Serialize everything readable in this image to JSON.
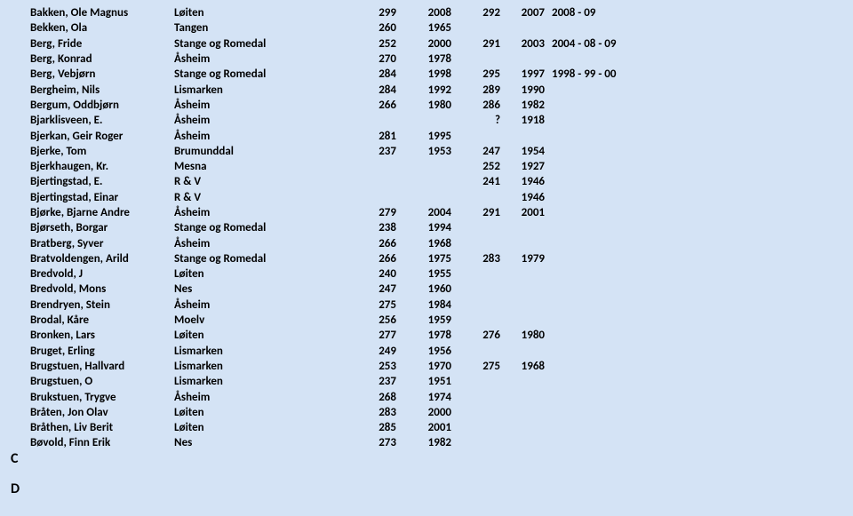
{
  "rows": [
    {
      "letter": "",
      "name": "Bakken, Ole Magnus",
      "place": "Løiten",
      "n1": "299",
      "y1": "2008",
      "n2": "292",
      "y2": "2007",
      "note": "2008 - 09"
    },
    {
      "letter": "",
      "name": "Bekken, Ola",
      "place": "Tangen",
      "n1": "260",
      "y1": "1965",
      "n2": "",
      "y2": "",
      "note": ""
    },
    {
      "letter": "",
      "name": "Berg, Fride",
      "place": "Stange og Romedal",
      "n1": "252",
      "y1": "2000",
      "n2": "291",
      "y2": "2003",
      "note": "2004 - 08 - 09"
    },
    {
      "letter": "",
      "name": "Berg, Konrad",
      "place": "Åsheim",
      "n1": "270",
      "y1": "1978",
      "n2": "",
      "y2": "",
      "note": ""
    },
    {
      "letter": "",
      "name": "Berg, Vebjørn",
      "place": "Stange og Romedal",
      "n1": "284",
      "y1": "1998",
      "n2": "295",
      "y2": "1997",
      "note": "1998 - 99 - 00"
    },
    {
      "letter": "",
      "name": "Bergheim, Nils",
      "place": "Lismarken",
      "n1": "284",
      "y1": "1992",
      "n2": "289",
      "y2": "1990",
      "note": ""
    },
    {
      "letter": "",
      "name": "Bergum, Oddbjørn",
      "place": "Åsheim",
      "n1": "266",
      "y1": "1980",
      "n2": "286",
      "y2": "1982",
      "note": ""
    },
    {
      "letter": "",
      "name": "Bjarklisveen, E.",
      "place": "Åsheim",
      "n1": "",
      "y1": "",
      "n2": "?",
      "y2": "1918",
      "note": ""
    },
    {
      "letter": "",
      "name": "Bjerkan, Geir Roger",
      "place": "Åsheim",
      "n1": "281",
      "y1": "1995",
      "n2": "",
      "y2": "",
      "note": ""
    },
    {
      "letter": "",
      "name": "Bjerke, Tom",
      "place": "Brumunddal",
      "n1": "237",
      "y1": "1953",
      "n2": "247",
      "y2": "1954",
      "note": ""
    },
    {
      "letter": "",
      "name": "Bjerkhaugen, Kr.",
      "place": "Mesna",
      "n1": "",
      "y1": "",
      "n2": "252",
      "y2": "1927",
      "note": ""
    },
    {
      "letter": "",
      "name": "Bjertingstad, E.",
      "place": "R & V",
      "n1": "",
      "y1": "",
      "n2": "241",
      "y2": "1946",
      "note": ""
    },
    {
      "letter": "",
      "name": "Bjertingstad, Einar",
      "place": "R & V",
      "n1": "",
      "y1": "",
      "n2": "",
      "y2": "1946",
      "note": ""
    },
    {
      "letter": "",
      "name": "Bjørke, Bjarne Andre",
      "place": "Åsheim",
      "n1": "279",
      "y1": "2004",
      "n2": "291",
      "y2": "2001",
      "note": ""
    },
    {
      "letter": "",
      "name": "Bjørseth, Borgar",
      "place": "Stange og Romedal",
      "n1": "238",
      "y1": "1994",
      "n2": "",
      "y2": "",
      "note": ""
    },
    {
      "letter": "",
      "name": "Bratberg, Syver",
      "place": "Åsheim",
      "n1": "266",
      "y1": "1968",
      "n2": "",
      "y2": "",
      "note": ""
    },
    {
      "letter": "",
      "name": "Bratvoldengen, Arild",
      "place": "Stange og Romedal",
      "n1": "266",
      "y1": "1975",
      "n2": "283",
      "y2": "1979",
      "note": ""
    },
    {
      "letter": "",
      "name": "Bredvold, J",
      "place": "Løiten",
      "n1": "240",
      "y1": "1955",
      "n2": "",
      "y2": "",
      "note": ""
    },
    {
      "letter": "",
      "name": "Bredvold, Mons",
      "place": "Nes",
      "n1": "247",
      "y1": "1960",
      "n2": "",
      "y2": "",
      "note": ""
    },
    {
      "letter": "",
      "name": "Brendryen, Stein",
      "place": "Åsheim",
      "n1": "275",
      "y1": "1984",
      "n2": "",
      "y2": "",
      "note": ""
    },
    {
      "letter": "",
      "name": "Brodal, Kåre",
      "place": "Moelv",
      "n1": "256",
      "y1": "1959",
      "n2": "",
      "y2": "",
      "note": ""
    },
    {
      "letter": "",
      "name": "Bronken, Lars",
      "place": "Løiten",
      "n1": "277",
      "y1": "1978",
      "n2": "276",
      "y2": "1980",
      "note": ""
    },
    {
      "letter": "",
      "name": "Bruget, Erling",
      "place": "Lismarken",
      "n1": "249",
      "y1": "1956",
      "n2": "",
      "y2": "",
      "note": ""
    },
    {
      "letter": "",
      "name": "Brugstuen, Hallvard",
      "place": "Lismarken",
      "n1": "253",
      "y1": "1970",
      "n2": "275",
      "y2": "1968",
      "note": ""
    },
    {
      "letter": "",
      "name": "Brugstuen, O",
      "place": "Lismarken",
      "n1": "237",
      "y1": "1951",
      "n2": "",
      "y2": "",
      "note": ""
    },
    {
      "letter": "",
      "name": "Brukstuen, Trygve",
      "place": "Åsheim",
      "n1": "268",
      "y1": "1974",
      "n2": "",
      "y2": "",
      "note": ""
    },
    {
      "letter": "",
      "name": "Bråten, Jon Olav",
      "place": "Løiten",
      "n1": "283",
      "y1": "2000",
      "n2": "",
      "y2": "",
      "note": ""
    },
    {
      "letter": "",
      "name": "Bråthen, Liv Berit",
      "place": "Løiten",
      "n1": "285",
      "y1": "2001",
      "n2": "",
      "y2": "",
      "note": ""
    },
    {
      "letter": "",
      "name": "Bøvold, Finn Erik",
      "place": "Nes",
      "n1": "273",
      "y1": "1982",
      "n2": "",
      "y2": "",
      "note": ""
    },
    {
      "letter": "C",
      "name": "",
      "place": "",
      "n1": "",
      "y1": "",
      "n2": "",
      "y2": "",
      "note": ""
    }
  ],
  "d_label": "D"
}
